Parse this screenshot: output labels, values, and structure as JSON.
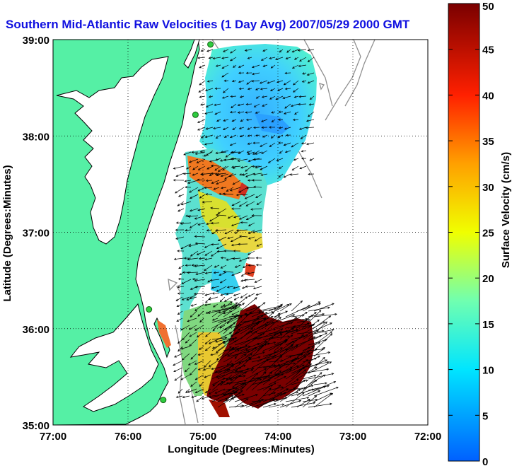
{
  "title": "Southern Mid-Atlantic Raw Velocities (1 Day Avg) 2007/05/29 2000 GMT",
  "map": {
    "xlabel": "Longitude (Degrees:Minutes)",
    "ylabel": "Latitude (Degrees:Minutes)",
    "lon_range": [
      -77,
      -72
    ],
    "lat_range": [
      35,
      39
    ],
    "lon_ticks": [
      {
        "value": -77,
        "label": "77:00"
      },
      {
        "value": -76,
        "label": "76:00"
      },
      {
        "value": -75,
        "label": "75:00"
      },
      {
        "value": -74,
        "label": "74:00"
      },
      {
        "value": -73,
        "label": "73:00"
      },
      {
        "value": -72,
        "label": "72:00"
      }
    ],
    "lat_ticks": [
      {
        "value": 39,
        "label": "39:00"
      },
      {
        "value": 38,
        "label": "38:00"
      },
      {
        "value": 37,
        "label": "37:00"
      },
      {
        "value": 36,
        "label": "36:00"
      },
      {
        "value": 35,
        "label": "35:00"
      }
    ],
    "grid": "dotted",
    "colors": {
      "land": "#55f0a5",
      "water": "#ffffff",
      "coast": "#000000",
      "bathymetry": "#909090",
      "station": "#2ecc40"
    },
    "stations": [
      {
        "lon": -74.9,
        "lat": 38.95
      },
      {
        "lon": -75.1,
        "lat": 38.22
      },
      {
        "lon": -75.72,
        "lat": 36.2
      },
      {
        "lon": -75.53,
        "lat": 35.26
      }
    ]
  },
  "colorbar": {
    "label": "Surface Velocity (cm/s)",
    "min": 0,
    "max": 50,
    "ticks": [
      {
        "value": 50,
        "label": "50"
      },
      {
        "value": 45,
        "label": "45"
      },
      {
        "value": 40,
        "label": "40"
      },
      {
        "value": 35,
        "label": "35"
      },
      {
        "value": 30,
        "label": "30"
      },
      {
        "value": 25,
        "label": "25"
      },
      {
        "value": 20,
        "label": "20"
      },
      {
        "value": 15,
        "label": "15"
      },
      {
        "value": 10,
        "label": "10"
      },
      {
        "value": 5,
        "label": "5"
      },
      {
        "value": 0,
        "label": "0"
      }
    ]
  }
}
